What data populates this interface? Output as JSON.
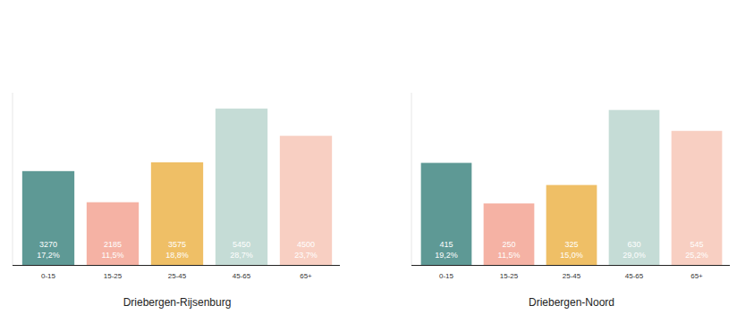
{
  "chart_data": [
    {
      "type": "bar",
      "title": "Driebergen-Rijsenburg",
      "categories": [
        "0-15",
        "15-25",
        "25-45",
        "45-65",
        "65+"
      ],
      "values": [
        3270,
        2185,
        3575,
        5450,
        4500
      ],
      "shares": [
        17.2,
        11.5,
        18.8,
        28.7,
        23.7
      ],
      "share_labels": [
        "17,2%",
        "11,5%",
        "18,8%",
        "28,7%",
        "23,7%"
      ],
      "colors": [
        "#5e9995",
        "#f5b2a4",
        "#efbf66",
        "#c5dcd6",
        "#f8cfc2"
      ],
      "ylim": [
        0,
        6000
      ],
      "tick_labels": false,
      "data_labels": true
    },
    {
      "type": "bar",
      "title": "Driebergen-Noord",
      "categories": [
        "0-15",
        "15-25",
        "25-45",
        "45-65",
        "65+"
      ],
      "values": [
        415,
        250,
        325,
        630,
        545
      ],
      "shares": [
        19.2,
        11.5,
        15.0,
        29.0,
        25.2
      ],
      "share_labels": [
        "19,2%",
        "11,5%",
        "15,0%",
        "29,0%",
        "25,2%"
      ],
      "colors": [
        "#5e9995",
        "#f5b2a4",
        "#efbf66",
        "#c5dcd6",
        "#f8cfc2"
      ],
      "ylim": [
        0,
        700
      ],
      "tick_labels": false,
      "data_labels": true
    }
  ]
}
